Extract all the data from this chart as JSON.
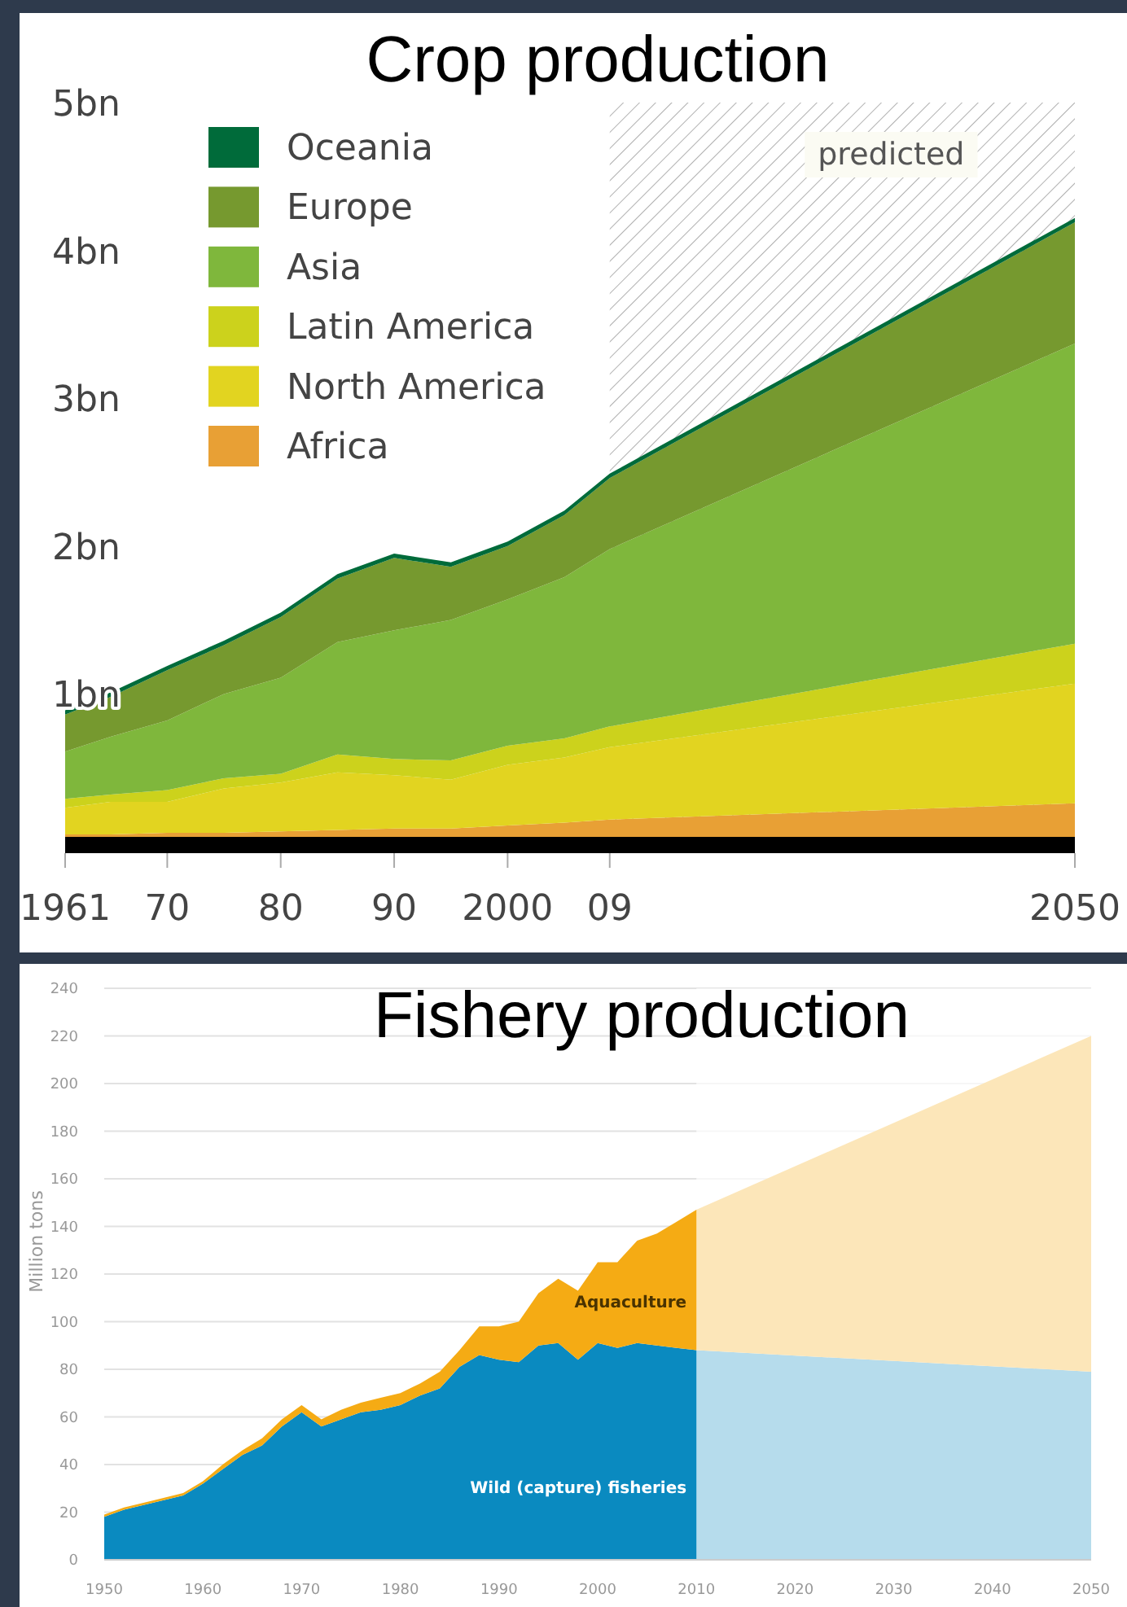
{
  "chart_data": [
    {
      "type": "area",
      "title": "Crop production",
      "stacked": true,
      "legend": "top left",
      "grid": false,
      "x": [
        1961,
        1965,
        1970,
        1975,
        1980,
        1985,
        1990,
        1995,
        2000,
        2005,
        2009,
        2050
      ],
      "xlim": [
        1961,
        2050
      ],
      "xticks": [
        1961,
        {
          "value": 1970,
          "label": "70"
        },
        {
          "value": 1980,
          "label": "80"
        },
        {
          "value": 1990,
          "label": "90"
        },
        2000,
        {
          "value": 2009,
          "label": "09"
        },
        2050
      ],
      "ylim": [
        0,
        5
      ],
      "yticks": [
        {
          "value": 1,
          "label": "1bn"
        },
        {
          "value": 2,
          "label": "2bn"
        },
        {
          "value": 3,
          "label": "3bn"
        },
        {
          "value": 4,
          "label": "4bn"
        },
        {
          "value": 5,
          "label": "5bn"
        }
      ],
      "bands": [
        {
          "axis": "x",
          "from": 2009,
          "to": 2050,
          "label": "predicted",
          "color": "#b0b0b0"
        }
      ],
      "series": [
        {
          "name": "Africa",
          "color": "#e8a035",
          "values": [
            0.05,
            0.05,
            0.06,
            0.06,
            0.07,
            0.08,
            0.09,
            0.09,
            0.11,
            0.13,
            0.15,
            0.26
          ]
        },
        {
          "name": "North America",
          "color": "#e2d420",
          "values": [
            0.18,
            0.22,
            0.21,
            0.3,
            0.33,
            0.39,
            0.36,
            0.33,
            0.41,
            0.44,
            0.49,
            0.81
          ]
        },
        {
          "name": "Latin America",
          "color": "#ccd21c",
          "values": [
            0.06,
            0.05,
            0.08,
            0.07,
            0.06,
            0.12,
            0.11,
            0.13,
            0.13,
            0.13,
            0.14,
            0.27
          ]
        },
        {
          "name": "Asia",
          "color": "#7fb73c",
          "values": [
            0.32,
            0.39,
            0.47,
            0.57,
            0.65,
            0.76,
            0.87,
            0.95,
            0.99,
            1.09,
            1.2,
            2.03
          ]
        },
        {
          "name": "Europe",
          "color": "#76992f",
          "values": [
            0.25,
            0.27,
            0.34,
            0.33,
            0.41,
            0.43,
            0.49,
            0.36,
            0.36,
            0.42,
            0.48,
            0.82
          ]
        },
        {
          "name": "Oceania",
          "color": "#006b3a",
          "values": [
            0.03,
            0.03,
            0.03,
            0.03,
            0.03,
            0.03,
            0.03,
            0.03,
            0.03,
            0.03,
            0.03,
            0.03
          ]
        }
      ]
    },
    {
      "type": "area",
      "title": "Fishery production",
      "stacked": true,
      "grid": "y",
      "ylabel": "Million tons",
      "x": [
        1950,
        1952,
        1955,
        1958,
        1960,
        1962,
        1964,
        1966,
        1968,
        1970,
        1972,
        1974,
        1976,
        1978,
        1980,
        1982,
        1984,
        1986,
        1988,
        1990,
        1992,
        1994,
        1996,
        1998,
        2000,
        2002,
        2004,
        2006,
        2008,
        2010,
        2050
      ],
      "xlim": [
        1950,
        2050
      ],
      "xticks": [
        1950,
        1960,
        1970,
        1980,
        1990,
        2000,
        2010,
        2020,
        2030,
        2040,
        2050
      ],
      "ylim": [
        0,
        240
      ],
      "yticks": [
        0,
        20,
        40,
        60,
        80,
        100,
        120,
        140,
        160,
        180,
        200,
        220,
        240
      ],
      "bands": [
        {
          "axis": "x",
          "from": 2010,
          "to": 2050,
          "color": "#ffffff"
        }
      ],
      "series": [
        {
          "name": "Wild (capture) fisheries",
          "color": "#0a8ac0",
          "values": [
            18,
            21,
            24,
            27,
            32,
            38,
            44,
            48,
            56,
            62,
            56,
            59,
            62,
            63,
            65,
            69,
            72,
            81,
            86,
            84,
            83,
            90,
            91,
            84,
            91,
            89,
            91,
            90,
            89,
            88,
            79
          ]
        },
        {
          "name": "Aquaculture",
          "color": "#f5ab14",
          "values": [
            1,
            1,
            1,
            1,
            1,
            2,
            2,
            3,
            3,
            3,
            3,
            4,
            4,
            5,
            5,
            5,
            7,
            7,
            12,
            14,
            17,
            22,
            27,
            29,
            34,
            36,
            43,
            47,
            53,
            59,
            141
          ]
        }
      ]
    }
  ]
}
